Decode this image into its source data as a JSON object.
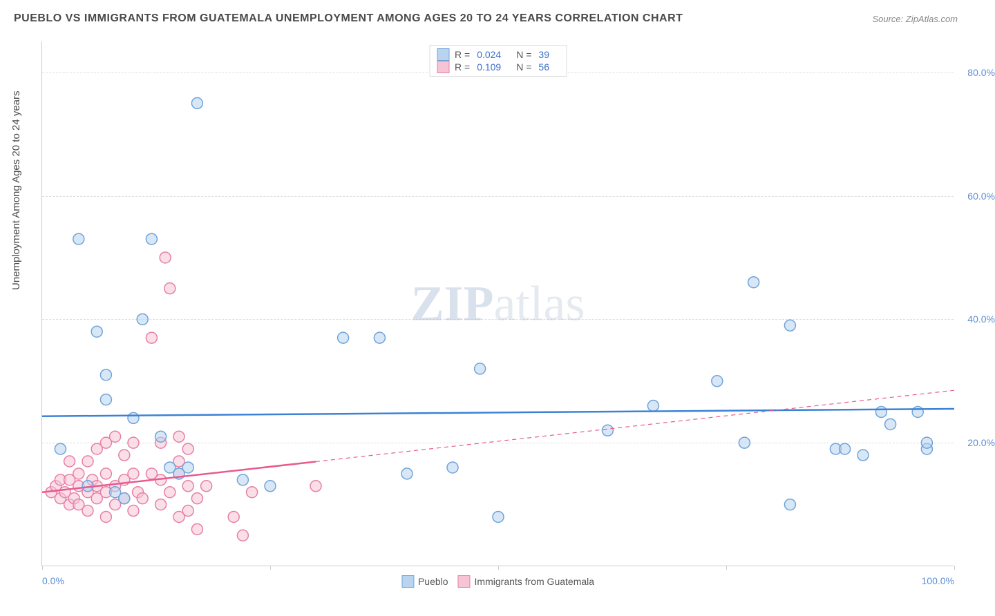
{
  "title": "PUEBLO VS IMMIGRANTS FROM GUATEMALA UNEMPLOYMENT AMONG AGES 20 TO 24 YEARS CORRELATION CHART",
  "source": "Source: ZipAtlas.com",
  "watermark_prefix": "ZIP",
  "watermark_suffix": "atlas",
  "chart": {
    "type": "scatter",
    "y_axis_label": "Unemployment Among Ages 20 to 24 years",
    "xlim": [
      0,
      100
    ],
    "ylim": [
      0,
      85
    ],
    "x_ticks": [
      0,
      50,
      100
    ],
    "x_tick_labels": [
      "0.0%",
      "",
      "100.0%"
    ],
    "x_minor_ticks": [
      25,
      75
    ],
    "y_ticks": [
      20,
      40,
      60,
      80
    ],
    "y_tick_labels": [
      "20.0%",
      "40.0%",
      "60.0%",
      "80.0%"
    ],
    "background_color": "#ffffff",
    "grid_color": "#dddddd",
    "axis_color": "#cccccc",
    "tick_label_color": "#5b8dd6",
    "title_color": "#4a4a4a",
    "title_fontsize": 16,
    "label_fontsize": 15,
    "marker_radius": 8,
    "marker_stroke_width": 1.5,
    "series": [
      {
        "name": "Pueblo",
        "legend_label": "Pueblo",
        "R": "0.024",
        "N": "39",
        "fill": "#b8d4ef",
        "stroke": "#6fa3da",
        "fill_opacity": 0.55,
        "trend": {
          "y_at_x0": 24.3,
          "y_at_x100": 25.5,
          "solid_until_x": 100,
          "stroke": "#3b82d6",
          "stroke_width": 2.5
        },
        "points": [
          [
            2,
            19
          ],
          [
            4,
            53
          ],
          [
            5,
            13
          ],
          [
            6,
            38
          ],
          [
            7,
            31
          ],
          [
            7,
            27
          ],
          [
            8,
            12
          ],
          [
            9,
            11
          ],
          [
            10,
            24
          ],
          [
            11,
            40
          ],
          [
            12,
            53
          ],
          [
            13,
            21
          ],
          [
            14,
            16
          ],
          [
            16,
            16
          ],
          [
            17,
            75
          ],
          [
            22,
            14
          ],
          [
            25,
            13
          ],
          [
            33,
            37
          ],
          [
            37,
            37
          ],
          [
            40,
            15
          ],
          [
            45,
            16
          ],
          [
            48,
            32
          ],
          [
            50,
            8
          ],
          [
            62,
            22
          ],
          [
            67,
            26
          ],
          [
            74,
            30
          ],
          [
            77,
            20
          ],
          [
            78,
            46
          ],
          [
            82,
            39
          ],
          [
            82,
            10
          ],
          [
            87,
            19
          ],
          [
            88,
            19
          ],
          [
            90,
            18
          ],
          [
            92,
            25
          ],
          [
            93,
            23
          ],
          [
            96,
            25
          ],
          [
            97,
            19
          ],
          [
            97,
            20
          ],
          [
            15,
            15
          ]
        ]
      },
      {
        "name": "Immigrants from Guatemala",
        "legend_label": "Immigrants from Guatemala",
        "R": "0.109",
        "N": "56",
        "fill": "#f6c4d5",
        "stroke": "#e77fa5",
        "fill_opacity": 0.55,
        "trend": {
          "y_at_x0": 12,
          "y_at_x100": 28.5,
          "solid_until_x": 30,
          "stroke": "#e85a8f",
          "stroke_width": 2.5
        },
        "points": [
          [
            1,
            12
          ],
          [
            1.5,
            13
          ],
          [
            2,
            11
          ],
          [
            2,
            14
          ],
          [
            2.5,
            12
          ],
          [
            3,
            10
          ],
          [
            3,
            14
          ],
          [
            3,
            17
          ],
          [
            3.5,
            11
          ],
          [
            4,
            10
          ],
          [
            4,
            13
          ],
          [
            4,
            15
          ],
          [
            5,
            9
          ],
          [
            5,
            12
          ],
          [
            5,
            17
          ],
          [
            5.5,
            14
          ],
          [
            6,
            11
          ],
          [
            6,
            13
          ],
          [
            6,
            19
          ],
          [
            7,
            8
          ],
          [
            7,
            12
          ],
          [
            7,
            15
          ],
          [
            7,
            20
          ],
          [
            8,
            10
          ],
          [
            8,
            13
          ],
          [
            8,
            21
          ],
          [
            9,
            11
          ],
          [
            9,
            14
          ],
          [
            9,
            18
          ],
          [
            10,
            9
          ],
          [
            10,
            15
          ],
          [
            10,
            20
          ],
          [
            10.5,
            12
          ],
          [
            11,
            11
          ],
          [
            12,
            15
          ],
          [
            12,
            37
          ],
          [
            13,
            10
          ],
          [
            13,
            14
          ],
          [
            13,
            20
          ],
          [
            13.5,
            50
          ],
          [
            14,
            12
          ],
          [
            14,
            45
          ],
          [
            15,
            8
          ],
          [
            15,
            15
          ],
          [
            15,
            17
          ],
          [
            15,
            21
          ],
          [
            16,
            9
          ],
          [
            16,
            13
          ],
          [
            16,
            19
          ],
          [
            17,
            11
          ],
          [
            17,
            6
          ],
          [
            18,
            13
          ],
          [
            21,
            8
          ],
          [
            22,
            5
          ],
          [
            23,
            12
          ],
          [
            30,
            13
          ]
        ]
      }
    ],
    "legend_top_labels": {
      "R_label": "R =",
      "N_label": "N ="
    }
  }
}
